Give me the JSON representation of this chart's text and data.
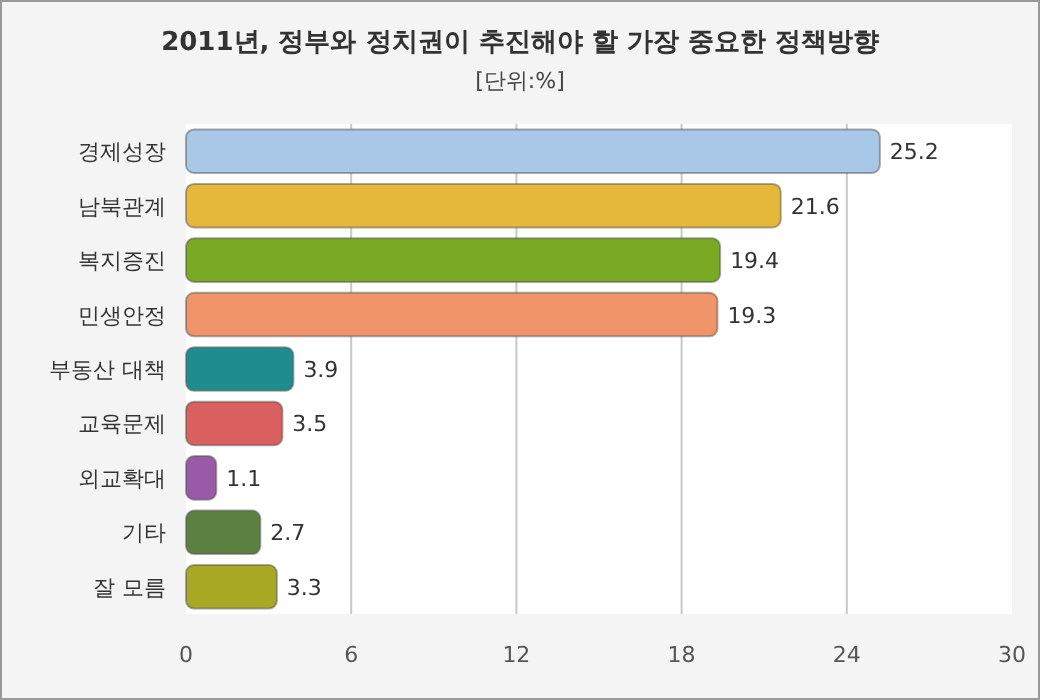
{
  "chart_data": {
    "type": "bar",
    "orientation": "horizontal",
    "title": "2011년, 정부와 정치권이 추진해야 할 가장 중요한 정책방향",
    "subtitle": "[단위:%]",
    "categories": [
      "경제성장",
      "남북관계",
      "복지증진",
      "민생안정",
      "부동산 대책",
      "교육문제",
      "외교확대",
      "기타",
      "잘 모름"
    ],
    "values": [
      25.2,
      21.6,
      19.4,
      19.3,
      3.9,
      3.5,
      1.1,
      2.7,
      3.3
    ],
    "colors": [
      "#a9c8e8",
      "#e6b83a",
      "#7aa923",
      "#f0956a",
      "#1f8c8f",
      "#d9605e",
      "#9a5aa8",
      "#5b8040",
      "#a8a825"
    ],
    "xlim": [
      0,
      30
    ],
    "xticks": [
      0,
      6,
      12,
      18,
      24,
      30
    ],
    "grid": "x",
    "data_labels": true
  }
}
